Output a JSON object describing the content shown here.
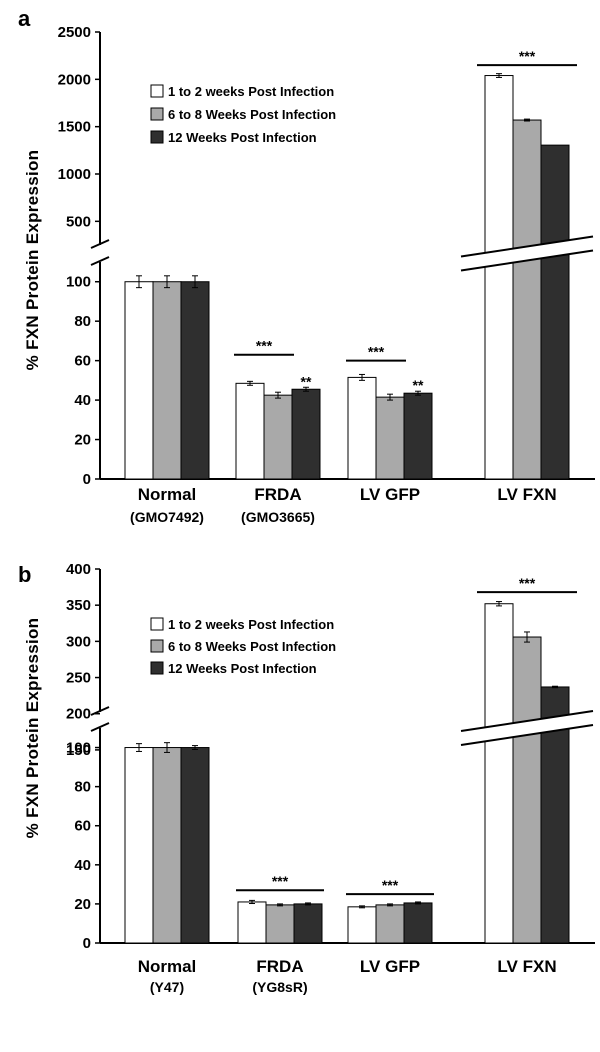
{
  "chart_data": [
    {
      "type": "bar",
      "panel_label": "a",
      "ylabel": "% FXN Protein Expression",
      "broken_axis": true,
      "ylim_lower": [
        0,
        110
      ],
      "ylim_upper": [
        250,
        2500
      ],
      "yticks_lower": [
        "0",
        "20",
        "40",
        "60",
        "80",
        "100"
      ],
      "yticks_upper": [
        "500",
        "1000",
        "1500",
        "2000",
        "2500"
      ],
      "categories": [
        {
          "line1": "Normal",
          "line2": "(GMO7492)"
        },
        {
          "line1": "FRDA",
          "line2": "(GMO3665)"
        },
        {
          "line1": "LV GFP",
          "line2": ""
        },
        {
          "line1": "LV FXN",
          "line2": ""
        }
      ],
      "series": [
        {
          "name": "1 to 2 weeks Post Infection",
          "color": "#ffffff",
          "values": [
            100,
            48.5,
            51.5,
            2040
          ],
          "errors": [
            3,
            1,
            1.5,
            20
          ]
        },
        {
          "name": "6 to 8 Weeks Post Infection",
          "color": "#a9a9a9",
          "values": [
            100,
            42.5,
            41.5,
            1570
          ],
          "errors": [
            3,
            1.5,
            1.5,
            10
          ]
        },
        {
          "name": "12 Weeks Post Infection",
          "color": "#2f2f2f",
          "values": [
            100,
            45.5,
            43.5,
            1305
          ],
          "errors": [
            3,
            1,
            1,
            0
          ]
        }
      ],
      "significance": [
        {
          "label": "***",
          "category": 1,
          "span": [
            0,
            1
          ],
          "level": 63
        },
        {
          "label": "**",
          "category": 1,
          "span": [
            2,
            2
          ],
          "level": 47
        },
        {
          "label": "***",
          "category": 2,
          "span": [
            0,
            1
          ],
          "level": 60
        },
        {
          "label": "**",
          "category": 2,
          "span": [
            2,
            2
          ],
          "level": 45
        },
        {
          "label": "***",
          "category": 3,
          "span": [
            0,
            2
          ],
          "level": 2150
        }
      ],
      "legend_position": "upper-left"
    },
    {
      "type": "bar",
      "panel_label": "b",
      "ylabel": "% FXN Protein Expression",
      "broken_axis": true,
      "ylim_lower": [
        0,
        110
      ],
      "ylim_upper": [
        125,
        400
      ],
      "yticks_lower": [
        "0",
        "20",
        "40",
        "60",
        "80",
        "100"
      ],
      "yticks_upper": [
        "150",
        "200",
        "250",
        "300",
        "350",
        "400"
      ],
      "categories": [
        {
          "line1": "Normal",
          "line2": "(Y47)"
        },
        {
          "line1": "FRDA",
          "line2": "(YG8sR)"
        },
        {
          "line1": "LV GFP",
          "line2": ""
        },
        {
          "line1": "LV FXN",
          "line2": ""
        }
      ],
      "series": [
        {
          "name": "1 to 2 weeks Post Infection",
          "color": "#ffffff",
          "values": [
            100,
            21,
            18.5,
            352
          ],
          "errors": [
            2,
            0.8,
            0.5,
            3
          ]
        },
        {
          "name": "6 to 8 Weeks Post Infection",
          "color": "#a9a9a9",
          "values": [
            100,
            19.5,
            19.5,
            306
          ],
          "errors": [
            2.5,
            0.5,
            0.5,
            7
          ]
        },
        {
          "name": "12 Weeks Post Infection",
          "color": "#2f2f2f",
          "values": [
            100,
            20,
            20.5,
            237
          ],
          "errors": [
            1,
            0.5,
            0.5,
            1
          ]
        }
      ],
      "significance": [
        {
          "label": "***",
          "category": 1,
          "span": [
            0,
            2
          ],
          "level": 27
        },
        {
          "label": "***",
          "category": 2,
          "span": [
            0,
            2
          ],
          "level": 25
        },
        {
          "label": "***",
          "category": 3,
          "span": [
            0,
            2
          ],
          "level": 368
        }
      ],
      "legend_position": "upper-left"
    }
  ]
}
